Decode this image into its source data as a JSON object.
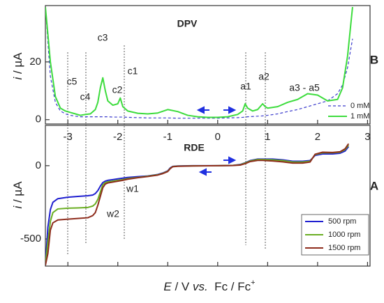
{
  "chart_data": [
    {
      "type": "line",
      "title": "DPV",
      "panel_label": "B",
      "ylabel": [
        "i",
        " / µA"
      ],
      "xlabel": [
        "E",
        " / V ",
        "vs.",
        "  Fc / Fc",
        "+"
      ],
      "xlim": [
        -3.45,
        3.05
      ],
      "xticks": [
        -3,
        -2,
        -1,
        0,
        1,
        2,
        3
      ],
      "ylim": [
        -1.5,
        39.5
      ],
      "yticks": [
        0,
        20
      ],
      "annotations": [
        "c5",
        "c4",
        "c3",
        "c2",
        "c1",
        "a1",
        "a2",
        "a3 - a5"
      ],
      "legend": "lower right",
      "x": [
        -3.45,
        -3.35,
        -3.25,
        -3.15,
        -3.05,
        -2.95,
        -2.85,
        -2.75,
        -2.65,
        -2.55,
        -2.45,
        -2.4,
        -2.35,
        -2.3,
        -2.25,
        -2.2,
        -2.1,
        -2.0,
        -1.95,
        -1.9,
        -1.8,
        -1.6,
        -1.4,
        -1.2,
        -1.0,
        -0.8,
        -0.6,
        -0.4,
        -0.2,
        0,
        0.2,
        0.4,
        0.5,
        0.55,
        0.6,
        0.7,
        0.8,
        0.9,
        0.95,
        1.0,
        1.2,
        1.4,
        1.6,
        1.8,
        2.0,
        2.2,
        2.4,
        2.5,
        2.6,
        2.7
      ],
      "series": [
        {
          "name": "0 mM",
          "color": "#3a3acc",
          "dash": true,
          "values": [
            39,
            15,
            6,
            3,
            2,
            1.5,
            1.2,
            1,
            1,
            1,
            1,
            1,
            1,
            1,
            1,
            1,
            0.9,
            0.9,
            0.9,
            0.9,
            0.8,
            0.7,
            0.6,
            0.6,
            0.6,
            0.5,
            0.5,
            0.5,
            0.5,
            0.5,
            0.6,
            0.7,
            0.8,
            0.9,
            1,
            1.1,
            1.2,
            1.3,
            1.4,
            1.5,
            2,
            2.8,
            3.5,
            4.5,
            5.5,
            6.5,
            9,
            12,
            18,
            28
          ]
        },
        {
          "name": "1 mM",
          "color": "#3ddc3d",
          "dash": false,
          "values": [
            39,
            20,
            8,
            4,
            3,
            2.5,
            2,
            1.5,
            1.8,
            2,
            3.5,
            6,
            11,
            14.5,
            10,
            6.5,
            5,
            5.5,
            7.5,
            4.5,
            3,
            2.2,
            2,
            2.3,
            3.5,
            2.8,
            1.5,
            1,
            0.8,
            0.8,
            1,
            1.8,
            3,
            5.5,
            4,
            3,
            3.5,
            5.5,
            4.5,
            4,
            4.5,
            6,
            7,
            9,
            8.5,
            6.5,
            7,
            11,
            22,
            39
          ]
        }
      ]
    },
    {
      "type": "line",
      "title": "RDE",
      "panel_label": "A",
      "ylabel": [
        "i",
        " / µA"
      ],
      "ylim": [
        -685,
        275
      ],
      "yticks": [
        -500,
        0
      ],
      "annotations": [
        "w1",
        "w2"
      ],
      "legend": "lower right",
      "x": [
        -3.45,
        -3.4,
        -3.35,
        -3.3,
        -3.2,
        -3.0,
        -2.8,
        -2.6,
        -2.5,
        -2.45,
        -2.4,
        -2.35,
        -2.3,
        -2.25,
        -2.2,
        -2.1,
        -2.0,
        -1.9,
        -1.8,
        -1.6,
        -1.4,
        -1.2,
        -1.1,
        -1.0,
        -0.95,
        -0.9,
        -0.8,
        -0.5,
        0,
        0.3,
        0.45,
        0.55,
        0.65,
        0.8,
        0.9,
        1.1,
        1.3,
        1.5,
        1.7,
        1.85,
        1.95,
        2.1,
        2.3,
        2.45,
        2.55,
        2.62
      ],
      "series": [
        {
          "name": "500 rpm",
          "color": "#1f1fd0",
          "values": [
            -680,
            -420,
            -300,
            -250,
            -225,
            -215,
            -210,
            -205,
            -200,
            -190,
            -170,
            -140,
            -115,
            -105,
            -100,
            -95,
            -90,
            -85,
            -80,
            -75,
            -70,
            -60,
            -50,
            -35,
            -15,
            -5,
            -2,
            0,
            0,
            2,
            8,
            20,
            35,
            45,
            45,
            45,
            40,
            30,
            30,
            35,
            70,
            80,
            80,
            85,
            100,
            130
          ]
        },
        {
          "name": "1000 rpm",
          "color": "#6aae22",
          "values": [
            -680,
            -520,
            -380,
            -320,
            -295,
            -290,
            -288,
            -285,
            -275,
            -260,
            -230,
            -180,
            -130,
            -115,
            -110,
            -105,
            -100,
            -95,
            -88,
            -80,
            -72,
            -62,
            -52,
            -38,
            -18,
            -6,
            -3,
            -1,
            0,
            2,
            6,
            18,
            32,
            42,
            42,
            40,
            35,
            25,
            25,
            30,
            75,
            88,
            88,
            92,
            110,
            140
          ]
        },
        {
          "name": "1500 rpm",
          "color": "#8e2c1c",
          "values": [
            -680,
            -600,
            -440,
            -390,
            -370,
            -365,
            -360,
            -355,
            -340,
            -320,
            -270,
            -210,
            -150,
            -125,
            -118,
            -112,
            -106,
            -100,
            -92,
            -82,
            -74,
            -64,
            -54,
            -40,
            -20,
            -7,
            -4,
            -2,
            0,
            1,
            4,
            14,
            28,
            36,
            36,
            32,
            26,
            18,
            18,
            25,
            78,
            92,
            90,
            95,
            115,
            150
          ]
        }
      ]
    }
  ]
}
